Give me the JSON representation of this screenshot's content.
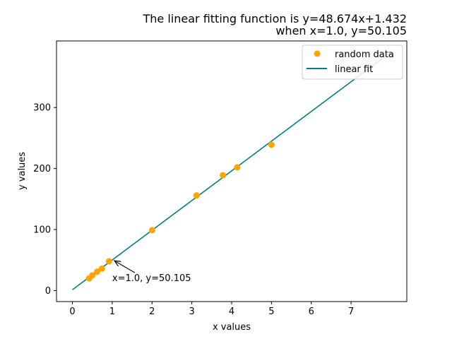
{
  "chart_data": {
    "type": "scatter",
    "title": {
      "line1": "The linear fitting function is y=48.674x+1.432",
      "line2": "when x=1.0, y=50.105"
    },
    "xlabel": "x values",
    "ylabel": "y values",
    "xlim": [
      -0.4,
      8.4
    ],
    "ylim": [
      -18,
      409
    ],
    "xticks": [
      0,
      1,
      2,
      3,
      4,
      5,
      6,
      7
    ],
    "yticks": [
      0,
      100,
      200,
      300
    ],
    "grid": false,
    "legend_position": "top-right",
    "series": [
      {
        "name": "random data",
        "kind": "scatter",
        "color": "#ffa500",
        "x": [
          0.42,
          0.5,
          0.62,
          0.74,
          0.92,
          2.0,
          3.12,
          3.78,
          4.14,
          5.0
        ],
        "y": [
          20,
          25,
          31,
          36,
          48,
          99,
          156,
          189,
          202,
          239
        ]
      },
      {
        "name": "linear fit",
        "kind": "line",
        "color": "#008080",
        "slope": 48.674,
        "intercept": 1.432,
        "x_range": [
          0,
          8
        ]
      }
    ],
    "annotation": {
      "text": "x=1.0, y=50.105",
      "point": [
        1.0,
        50.105
      ],
      "text_position": [
        1.0,
        20
      ]
    }
  }
}
